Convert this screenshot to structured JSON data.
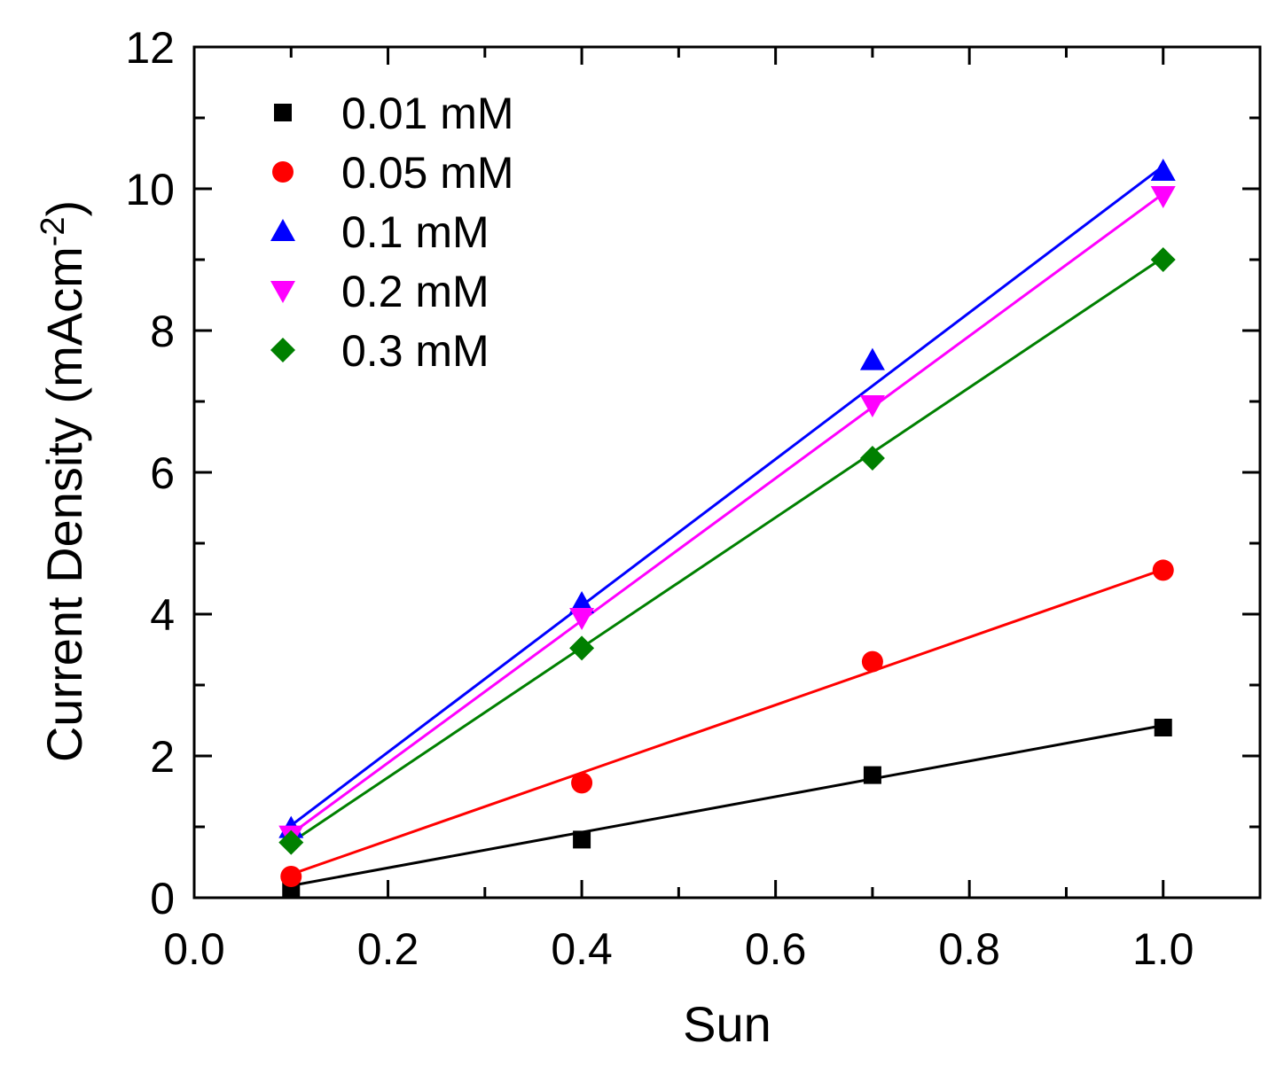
{
  "chart_data": {
    "type": "scatter",
    "xlabel": "Sun",
    "ylabel": "Current Density (mAcm",
    "ylabel_sup": "-2",
    "ylabel_close": ")",
    "xlim": [
      0.0,
      1.1
    ],
    "ylim": [
      0,
      12
    ],
    "xticks": [
      0.0,
      0.2,
      0.4,
      0.6,
      0.8,
      1.0
    ],
    "xtick_labels": [
      "0.0",
      "0.2",
      "0.4",
      "0.6",
      "0.8",
      "1.0"
    ],
    "yticks": [
      0,
      2,
      4,
      6,
      8,
      10,
      12
    ],
    "ytick_labels": [
      "0",
      "2",
      "4",
      "6",
      "8",
      "10",
      "12"
    ],
    "grid": false,
    "legend_position": "top-left",
    "x": [
      0.1,
      0.4,
      0.7,
      1.0
    ],
    "series": [
      {
        "name": "0.01 mM",
        "color": "#000000",
        "marker": "square",
        "values": [
          0.12,
          0.82,
          1.73,
          2.4
        ],
        "fit": [
          0.17,
          2.43
        ]
      },
      {
        "name": "0.05 mM",
        "color": "#ff0000",
        "marker": "circle",
        "values": [
          0.3,
          1.62,
          3.33,
          4.62
        ],
        "fit": [
          0.33,
          4.63
        ]
      },
      {
        "name": "0.1 mM",
        "color": "#0000ff",
        "marker": "triangle-up",
        "values": [
          0.98,
          4.15,
          7.58,
          10.25
        ],
        "fit": [
          1.02,
          10.32
        ]
      },
      {
        "name": "0.2 mM",
        "color": "#ff00ff",
        "marker": "triangle-down",
        "values": [
          0.88,
          3.95,
          6.95,
          9.9
        ],
        "fit": [
          0.9,
          9.93
        ]
      },
      {
        "name": "0.3 mM",
        "color": "#008000",
        "marker": "diamond",
        "values": [
          0.78,
          3.52,
          6.2,
          9.0
        ],
        "fit": [
          0.78,
          9.03
        ]
      }
    ]
  }
}
